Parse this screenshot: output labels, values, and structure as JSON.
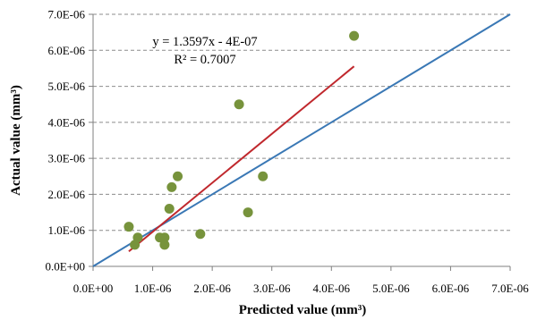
{
  "chart_data": {
    "type": "scatter",
    "xlabel": "Predicted value (mm³)",
    "ylabel": "Actual value (mm³)",
    "xlim": [
      0,
      7e-06
    ],
    "ylim": [
      0,
      7e-06
    ],
    "x_ticks": [
      0,
      1e-06,
      2e-06,
      3e-06,
      4e-06,
      5e-06,
      6e-06,
      7e-06
    ],
    "y_ticks": [
      0,
      1e-06,
      2e-06,
      3e-06,
      4e-06,
      5e-06,
      6e-06,
      7e-06
    ],
    "x_tick_labels": [
      "0.0E+00",
      "1.0E-06",
      "2.0E-06",
      "3.0E-06",
      "4.0E-06",
      "5.0E-06",
      "6.0E-06",
      "7.0E-06"
    ],
    "y_tick_labels": [
      "0.0E+00",
      "1.0E-06",
      "2.0E-06",
      "3.0E-06",
      "4.0E-06",
      "5.0E-06",
      "6.0E-06",
      "7.0E-06"
    ],
    "grid": {
      "horizontal": true,
      "vertical": false,
      "style": "dashed"
    },
    "points": [
      {
        "x": 6e-07,
        "y": 1.1e-06
      },
      {
        "x": 7e-07,
        "y": 6e-07
      },
      {
        "x": 7.5e-07,
        "y": 8e-07
      },
      {
        "x": 1.12e-06,
        "y": 8e-07
      },
      {
        "x": 1.2e-06,
        "y": 6e-07
      },
      {
        "x": 1.2e-06,
        "y": 8e-07
      },
      {
        "x": 1.28e-06,
        "y": 1.6e-06
      },
      {
        "x": 1.32e-06,
        "y": 2.2e-06
      },
      {
        "x": 1.42e-06,
        "y": 2.5e-06
      },
      {
        "x": 1.8e-06,
        "y": 9e-07
      },
      {
        "x": 2.45e-06,
        "y": 4.5e-06
      },
      {
        "x": 2.6e-06,
        "y": 1.5e-06
      },
      {
        "x": 2.85e-06,
        "y": 2.5e-06
      },
      {
        "x": 4.38e-06,
        "y": 6.4e-06
      }
    ],
    "trendline": {
      "slope": 1.3597,
      "intercept": -4e-07,
      "x_range": [
        6e-07,
        4.38e-06
      ]
    },
    "reference_line": {
      "from": [
        0,
        0
      ],
      "to": [
        7e-06,
        7e-06
      ]
    },
    "annotation": {
      "equation": "y = 1.3597x - 4E-07",
      "r_squared": "R² = 0.7007"
    },
    "colors": {
      "points": "#77933c",
      "trendline": "#c0282d",
      "reference_line": "#3a78b5",
      "axis": "#7f7f7f",
      "grid": "#8c8c8c"
    }
  }
}
